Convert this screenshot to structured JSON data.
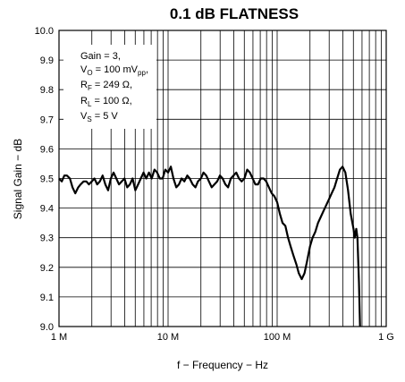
{
  "chart_data": {
    "type": "line",
    "title": "0.1 dB FLATNESS",
    "xlabel": "f − Frequency − Hz",
    "ylabel": "Signal Gain − dB",
    "xscale": "log",
    "xlim": [
      1000000,
      1000000000
    ],
    "ylim": [
      9.0,
      10.0
    ],
    "grid": true,
    "x_tick_labels": [
      {
        "value": 1000000,
        "label": "1 M"
      },
      {
        "value": 10000000,
        "label": "10 M"
      },
      {
        "value": 100000000,
        "label": "100 M"
      },
      {
        "value": 1000000000,
        "label": "1 G"
      }
    ],
    "y_tick_labels": [
      "9.0",
      "9.1",
      "9.2",
      "9.3",
      "9.4",
      "9.5",
      "9.6",
      "9.7",
      "9.8",
      "9.9",
      "10.0"
    ],
    "annotation": {
      "lines": [
        {
          "text": "Gain = 3,"
        },
        {
          "text": "V",
          "sub": "O",
          "rest": " = 100 mV",
          "sub2": "pp",
          "rest2": ","
        },
        {
          "text": "R",
          "sub": "F",
          "rest": " = 249 Ω,"
        },
        {
          "text": "R",
          "sub": "L",
          "rest": " = 100 Ω,"
        },
        {
          "text": "V",
          "sub": "S",
          "rest": " = 5 V"
        }
      ]
    },
    "series": [
      {
        "x": [
          1000000,
          1060000,
          1120000,
          1180000,
          1260000,
          1330000,
          1410000,
          1500000,
          1580000,
          1680000,
          1780000,
          1880000,
          2000000,
          2110000,
          2240000,
          2370000,
          2510000,
          2660000,
          2820000,
          2990000,
          3160000,
          3350000,
          3550000,
          3760000,
          3980000,
          4220000,
          4470000,
          4730000,
          5010000,
          5310000,
          5620000,
          5960000,
          6310000,
          6680000,
          7080000,
          7500000,
          7940000,
          8410000,
          8910000,
          9440000,
          10000000,
          10600000,
          11200000,
          11900000,
          12600000,
          13300000,
          14100000,
          15000000,
          15800000,
          16800000,
          17800000,
          18800000,
          20000000,
          21100000,
          22400000,
          23700000,
          25100000,
          26600000,
          28200000,
          29900000,
          31600000,
          33500000,
          35500000,
          37600000,
          39800000,
          42200000,
          44700000,
          47300000,
          50100000,
          53100000,
          56200000,
          59600000,
          63100000,
          66800000,
          70800000,
          75000000,
          79400000,
          84100000,
          89100000,
          94400000,
          100000000,
          106000000,
          112000000,
          119000000,
          126000000,
          133000000,
          141000000,
          150000000,
          158000000,
          168000000,
          178000000,
          188000000,
          200000000,
          211000000,
          224000000,
          237000000,
          251000000,
          266000000,
          282000000,
          299000000,
          316000000,
          335000000,
          355000000,
          376000000,
          398000000,
          422000000,
          447000000,
          473000000,
          501000000,
          515000000,
          531000000,
          545000000,
          562000000,
          575000000
        ],
        "y": [
          9.5,
          9.49,
          9.51,
          9.51,
          9.5,
          9.47,
          9.45,
          9.47,
          9.48,
          9.49,
          9.49,
          9.48,
          9.49,
          9.5,
          9.48,
          9.49,
          9.51,
          9.48,
          9.46,
          9.5,
          9.52,
          9.5,
          9.48,
          9.49,
          9.5,
          9.47,
          9.48,
          9.5,
          9.46,
          9.48,
          9.5,
          9.52,
          9.5,
          9.52,
          9.5,
          9.53,
          9.52,
          9.5,
          9.5,
          9.53,
          9.52,
          9.54,
          9.5,
          9.47,
          9.48,
          9.5,
          9.49,
          9.51,
          9.5,
          9.48,
          9.47,
          9.49,
          9.5,
          9.52,
          9.51,
          9.49,
          9.47,
          9.48,
          9.49,
          9.51,
          9.5,
          9.48,
          9.47,
          9.5,
          9.51,
          9.52,
          9.5,
          9.49,
          9.5,
          9.53,
          9.52,
          9.5,
          9.48,
          9.48,
          9.5,
          9.5,
          9.49,
          9.47,
          9.45,
          9.44,
          9.42,
          9.38,
          9.35,
          9.34,
          9.3,
          9.27,
          9.24,
          9.21,
          9.18,
          9.16,
          9.18,
          9.22,
          9.27,
          9.3,
          9.32,
          9.35,
          9.37,
          9.39,
          9.41,
          9.43,
          9.45,
          9.47,
          9.5,
          9.53,
          9.54,
          9.52,
          9.46,
          9.38,
          9.33,
          9.3,
          9.33,
          9.3,
          9.15,
          9.0
        ]
      }
    ]
  }
}
